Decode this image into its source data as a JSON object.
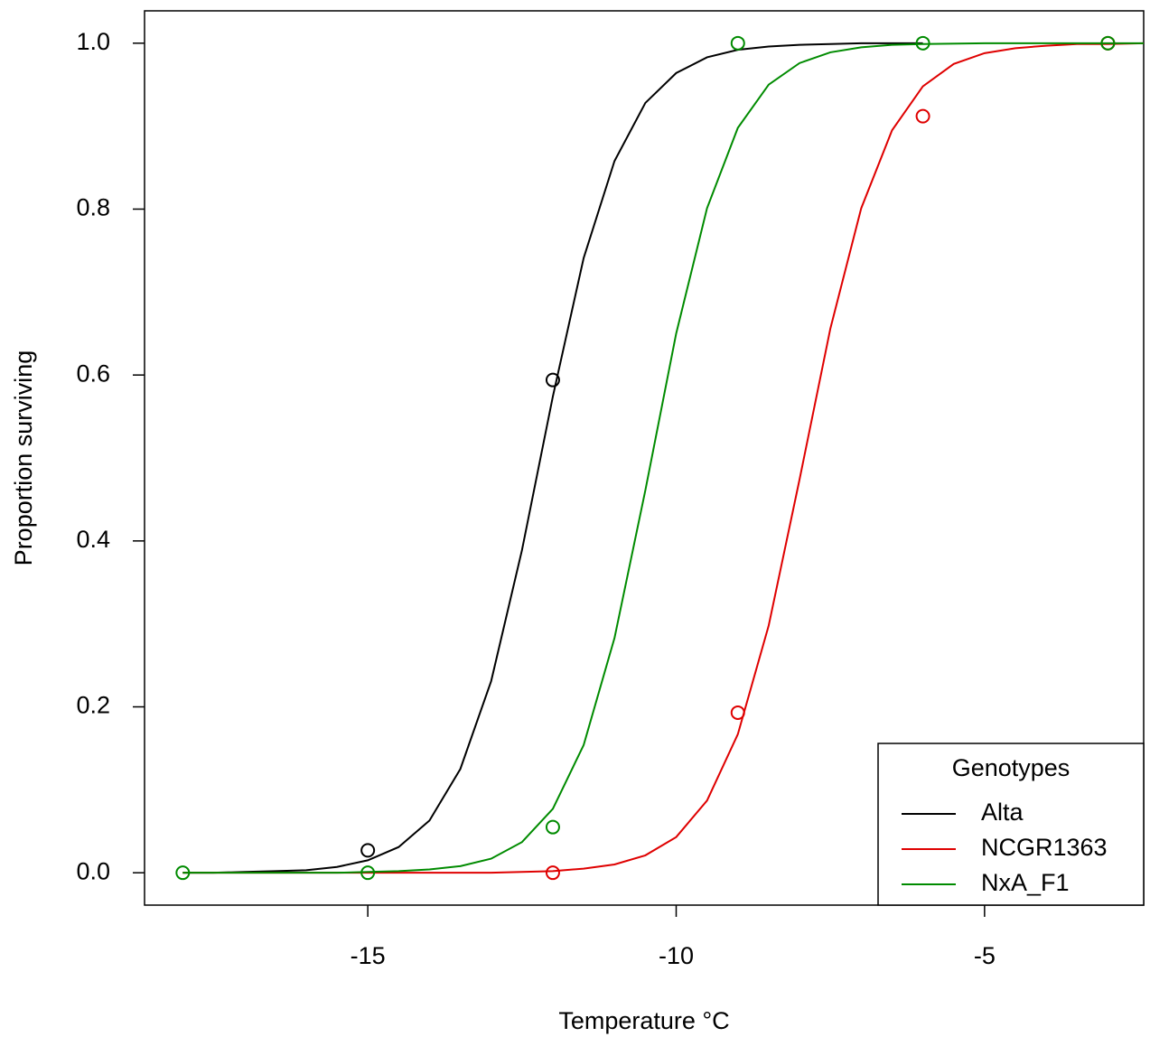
{
  "chart_data": {
    "type": "scatter",
    "xlabel": "Temperature °C",
    "ylabel": "Proportion surviving",
    "xlim": [
      -18.62,
      -2.42
    ],
    "ylim": [
      -0.039,
      1.039
    ],
    "xticks": [
      -15,
      -10,
      -5
    ],
    "yticks": [
      {
        "value": 0,
        "label": "0.0"
      },
      {
        "value": 0.2,
        "label": "0.2"
      },
      {
        "value": 0.4,
        "label": "0.4"
      },
      {
        "value": 0.6,
        "label": "0.6"
      },
      {
        "value": 0.8,
        "label": "0.8"
      },
      {
        "value": 1,
        "label": "1.0"
      }
    ],
    "grid": false,
    "legend_title": "Genotypes",
    "legend_position": "bottomright",
    "series": [
      {
        "name": "Alta",
        "color": "#000000",
        "x": [
          -15,
          -12
        ],
        "values": [
          0.027,
          0.594
        ],
        "curve_x": [
          -18,
          -17.5,
          -17,
          -16.5,
          -16,
          -15.5,
          -15,
          -14.5,
          -14,
          -13.5,
          -13,
          -12.5,
          -12,
          -11.5,
          -11,
          -10.5,
          -10,
          -9.5,
          -9,
          -8.5,
          -8,
          -7.5,
          -7,
          -6
        ],
        "curve_values": [
          0,
          0,
          0.001,
          0.002,
          0.003,
          0.007,
          0.015,
          0.031,
          0.063,
          0.125,
          0.231,
          0.389,
          0.574,
          0.741,
          0.858,
          0.928,
          0.964,
          0.983,
          0.992,
          0.996,
          0.998,
          0.999,
          1,
          1
        ]
      },
      {
        "name": "NCGR1363",
        "color": "#df0000",
        "x": [
          -12,
          -9,
          -6,
          -3
        ],
        "values": [
          0,
          0.193,
          0.912,
          1
        ],
        "curve_x": [
          -18,
          -14,
          -13,
          -12.5,
          -12,
          -11.5,
          -11,
          -10.5,
          -10,
          -9.5,
          -9,
          -8.5,
          -8,
          -7.5,
          -7,
          -6.5,
          -6,
          -5.5,
          -5,
          -4.5,
          -4,
          -3.5,
          -3,
          -2.42
        ],
        "curve_values": [
          0,
          0,
          0,
          0.001,
          0.002,
          0.005,
          0.01,
          0.021,
          0.043,
          0.087,
          0.167,
          0.298,
          0.474,
          0.656,
          0.801,
          0.895,
          0.948,
          0.975,
          0.988,
          0.994,
          0.997,
          0.999,
          0.999,
          1
        ]
      },
      {
        "name": "NxA_F1",
        "color": "#008b00",
        "x": [
          -18,
          -15,
          -12,
          -9,
          -6,
          -3
        ],
        "values": [
          0,
          0,
          0.055,
          1,
          1,
          1
        ],
        "curve_x": [
          -18,
          -17,
          -16,
          -15.5,
          -15,
          -14.5,
          -14,
          -13.5,
          -13,
          -12.5,
          -12,
          -11.5,
          -11,
          -10.5,
          -10,
          -9.5,
          -9,
          -8.5,
          -8,
          -7.5,
          -7,
          -6.5,
          -6,
          -5,
          -2.42
        ],
        "curve_values": [
          0,
          0,
          0,
          0,
          0.001,
          0.002,
          0.004,
          0.008,
          0.017,
          0.037,
          0.077,
          0.154,
          0.283,
          0.461,
          0.65,
          0.801,
          0.898,
          0.95,
          0.976,
          0.989,
          0.995,
          0.998,
          0.999,
          1,
          1
        ]
      }
    ]
  }
}
